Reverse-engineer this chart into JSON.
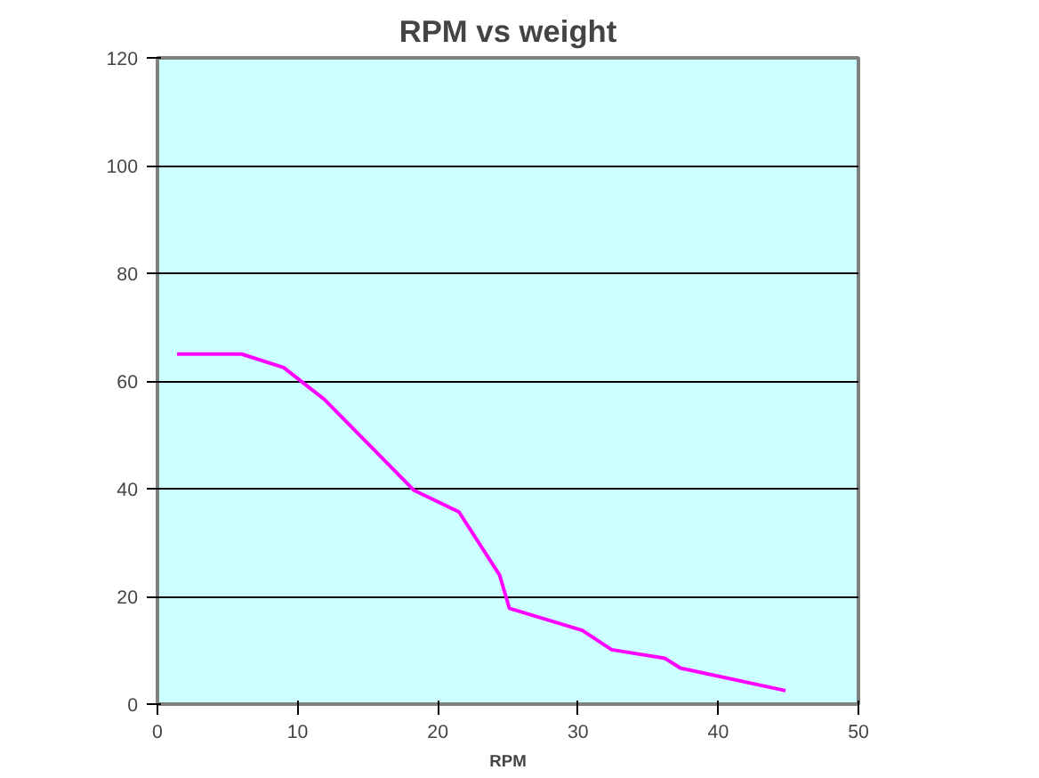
{
  "chart_data": {
    "type": "line",
    "title": "RPM vs weight",
    "xlabel": "RPM",
    "x": [
      1.4,
      6.0,
      9.0,
      11.9,
      18.3,
      21.5,
      24.4,
      25.1,
      30.3,
      32.4,
      36.2,
      37.3,
      44.8
    ],
    "series": [
      {
        "color": "#ff00ff",
        "values": [
          65,
          65,
          62.5,
          56.6,
          39.7,
          35.7,
          24,
          17.8,
          13.7,
          10.1,
          8.5,
          6.7,
          2.5
        ]
      }
    ],
    "xlim": [
      0,
      50
    ],
    "xticks": [
      0,
      10,
      20,
      30,
      40,
      50
    ],
    "ylim": [
      0,
      120
    ],
    "yticks": [
      0,
      20,
      40,
      60,
      80,
      100,
      120
    ],
    "grid": "y",
    "marker": "none",
    "line_style": "solid"
  }
}
